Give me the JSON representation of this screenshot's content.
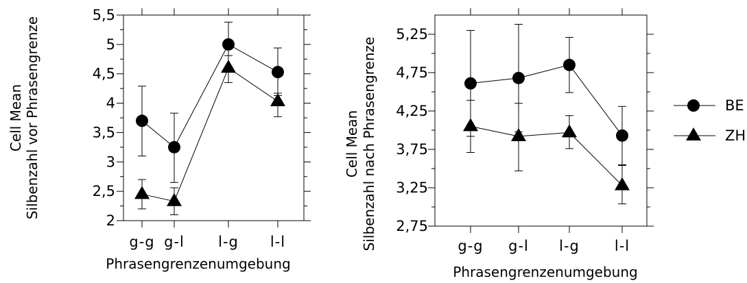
{
  "chart_data": [
    {
      "type": "line",
      "xlabel": "Phrasengrenzenumgebung",
      "ylabel_line1": "Cell Mean",
      "ylabel_line2": "Silbenzahl vor Phrasengrenze",
      "categories": [
        "g-g",
        "g-l",
        "l-g",
        "l-l"
      ],
      "ylim": [
        2,
        5.5
      ],
      "yticks": [
        "2",
        "2,5",
        "3",
        "3,5",
        "4",
        "4,5",
        "5",
        "5,5"
      ],
      "ytick_values": [
        2,
        2.5,
        3,
        3.5,
        4,
        4.5,
        5,
        5.5
      ],
      "series": [
        {
          "name": "BE",
          "marker": "circle",
          "values": [
            3.7,
            3.25,
            5.0,
            4.53
          ],
          "err_low": [
            3.1,
            2.65,
            4.62,
            4.13
          ],
          "err_high": [
            4.29,
            3.83,
            5.38,
            4.94
          ]
        },
        {
          "name": "ZH",
          "marker": "triangle",
          "values": [
            2.45,
            2.33,
            4.6,
            4.03
          ],
          "err_low": [
            2.2,
            2.1,
            4.35,
            3.77
          ],
          "err_high": [
            2.7,
            2.56,
            4.81,
            4.17
          ]
        }
      ]
    },
    {
      "type": "line",
      "xlabel": "Phrasengrenzenumgebung",
      "ylabel_line1": "Cell Mean",
      "ylabel_line2": "Silbenzahl nach Phrasengrenze",
      "categories": [
        "g-g",
        "g-l",
        "l-g",
        "l-l"
      ],
      "ylim": [
        2.75,
        5.5
      ],
      "yticks": [
        "2,75",
        "3,25",
        "3,75",
        "4,25",
        "4,75",
        "5,25"
      ],
      "ytick_values": [
        2.75,
        3.25,
        3.75,
        4.25,
        4.75,
        5.25
      ],
      "series": [
        {
          "name": "BE",
          "marker": "circle",
          "values": [
            4.61,
            4.68,
            4.85,
            3.93
          ],
          "err_low": [
            3.92,
            3.98,
            4.49,
            3.55
          ],
          "err_high": [
            5.3,
            5.38,
            5.21,
            4.31
          ]
        },
        {
          "name": "ZH",
          "marker": "triangle",
          "values": [
            4.05,
            3.92,
            3.97,
            3.28
          ],
          "err_low": [
            3.71,
            3.47,
            3.76,
            3.04
          ],
          "err_high": [
            4.39,
            4.35,
            4.19,
            3.54
          ]
        }
      ]
    }
  ]
}
